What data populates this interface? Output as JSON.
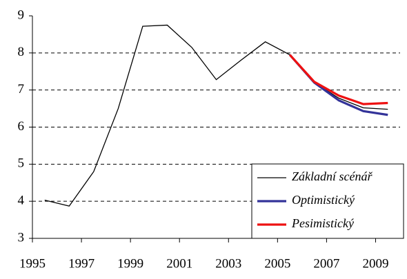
{
  "chart_data": {
    "type": "line",
    "categories": [
      "1995",
      null,
      "1997",
      null,
      "1999",
      null,
      "2001",
      null,
      "2003",
      null,
      "2005",
      null,
      "2007",
      null,
      "2009"
    ],
    "series": [
      {
        "name": "Základní scénář",
        "color": "#000000",
        "values": [
          4.03,
          3.87,
          4.8,
          6.5,
          8.72,
          8.75,
          8.15,
          7.28,
          7.8,
          8.3,
          7.95,
          7.2,
          6.78,
          6.52,
          6.48
        ]
      },
      {
        "name": "Optimistický",
        "color": "#333399",
        "values": [
          null,
          null,
          null,
          null,
          null,
          null,
          null,
          null,
          null,
          null,
          7.95,
          7.2,
          6.72,
          6.43,
          6.33
        ]
      },
      {
        "name": "Pesimistický",
        "color": "#ee1111",
        "values": [
          null,
          null,
          null,
          null,
          null,
          null,
          null,
          null,
          null,
          null,
          7.95,
          7.22,
          6.85,
          6.62,
          6.65
        ]
      }
    ],
    "ylim": [
      3,
      9
    ],
    "yticks": [
      3,
      4,
      5,
      6,
      7,
      8,
      9
    ],
    "grid": true,
    "legend": "bottom-right"
  }
}
